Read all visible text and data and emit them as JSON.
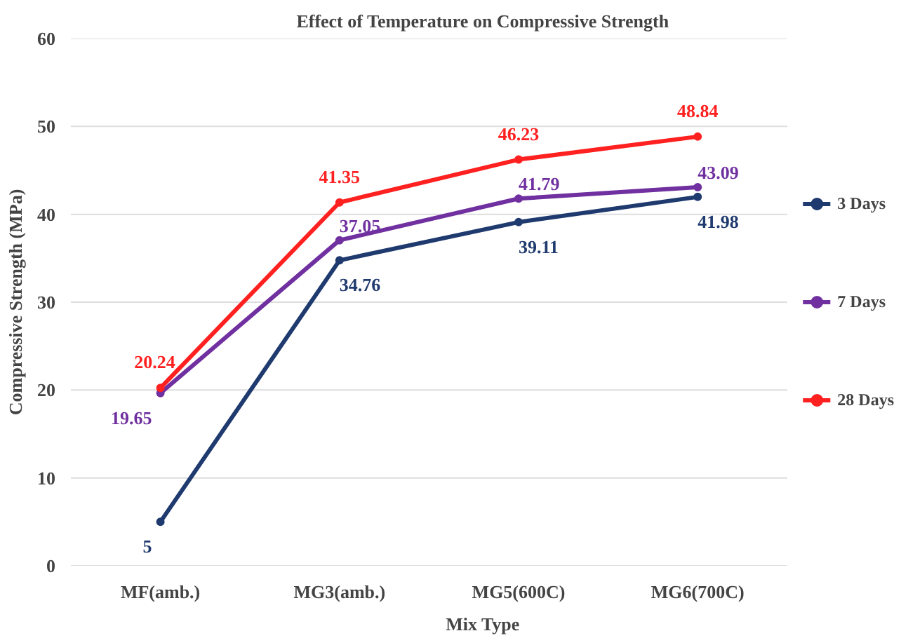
{
  "chart_data": {
    "type": "line",
    "title": "Effect of Temperature on Compressive Strength",
    "xlabel": "Mix Type",
    "ylabel": "Compressive Strength (MPa)",
    "categories": [
      "MF(amb.)",
      "MG3(amb.)",
      "MG5(600C)",
      "MG6(700C)"
    ],
    "series": [
      {
        "name": "3 Days",
        "color": "#1f3a6e",
        "values": [
          5,
          34.76,
          39.11,
          41.98
        ]
      },
      {
        "name": "7 Days",
        "color": "#7030a0",
        "values": [
          19.65,
          37.05,
          41.79,
          43.09
        ]
      },
      {
        "name": "28 Days",
        "color": "#ff2020",
        "values": [
          20.24,
          41.35,
          46.23,
          48.84
        ]
      }
    ],
    "ylim": [
      0,
      60
    ],
    "yticks": [
      0,
      10,
      20,
      30,
      40,
      50,
      60
    ],
    "grid": "y",
    "legend": "right",
    "marker": "circle",
    "line_style": "solid",
    "data_labels": true
  }
}
